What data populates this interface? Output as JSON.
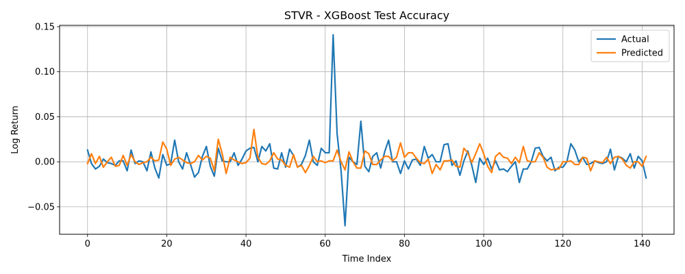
{
  "chart_data": {
    "type": "line",
    "title": "STVR - XGBoost Test Accuracy",
    "xlabel": "Time Index",
    "ylabel": "Log Return",
    "xlim": [
      -7.05,
      148.05
    ],
    "ylim": [
      -0.0805,
      0.1515
    ],
    "xticks": [
      0,
      20,
      40,
      60,
      80,
      100,
      120,
      140
    ],
    "xtick_labels": [
      "0",
      "20",
      "40",
      "60",
      "80",
      "100",
      "120",
      "140"
    ],
    "yticks": [
      -0.05,
      0.0,
      0.05,
      0.1,
      0.15
    ],
    "ytick_labels": [
      "−0.05",
      "0.00",
      "0.05",
      "0.10",
      "0.15"
    ],
    "grid": true,
    "legend_position": "upper right",
    "x": [
      0,
      1,
      2,
      3,
      4,
      5,
      6,
      7,
      8,
      9,
      10,
      11,
      12,
      13,
      14,
      15,
      16,
      17,
      18,
      19,
      20,
      21,
      22,
      23,
      24,
      25,
      26,
      27,
      28,
      29,
      30,
      31,
      32,
      33,
      34,
      35,
      36,
      37,
      38,
      39,
      40,
      41,
      42,
      43,
      44,
      45,
      46,
      47,
      48,
      49,
      50,
      51,
      52,
      53,
      54,
      55,
      56,
      57,
      58,
      59,
      60,
      61,
      62,
      63,
      64,
      65,
      66,
      67,
      68,
      69,
      70,
      71,
      72,
      73,
      74,
      75,
      76,
      77,
      78,
      79,
      80,
      81,
      82,
      83,
      84,
      85,
      86,
      87,
      88,
      89,
      90,
      91,
      92,
      93,
      94,
      95,
      96,
      97,
      98,
      99,
      100,
      101,
      102,
      103,
      104,
      105,
      106,
      107,
      108,
      109,
      110,
      111,
      112,
      113,
      114,
      115,
      116,
      117,
      118,
      119,
      120,
      121,
      122,
      123,
      124,
      125,
      126,
      127,
      128,
      129,
      130,
      131,
      132,
      133,
      134,
      135,
      136,
      137,
      138,
      139,
      140,
      141
    ],
    "series": [
      {
        "name": "Actual",
        "color": "#1f77b4",
        "values": [
          0.013,
          -0.002,
          -0.008,
          -0.005,
          0.003,
          -0.001,
          -0.002,
          -0.004,
          0.001,
          0.001,
          -0.01,
          0.013,
          -0.002,
          0.001,
          0.0,
          -0.01,
          0.011,
          -0.007,
          -0.018,
          0.008,
          -0.004,
          -0.002,
          0.024,
          0.0,
          -0.008,
          0.01,
          -0.003,
          -0.017,
          -0.012,
          0.006,
          0.017,
          -0.005,
          -0.016,
          0.015,
          0.001,
          0.0,
          0.0,
          0.01,
          -0.004,
          0.003,
          0.012,
          0.015,
          0.016,
          0.0,
          0.017,
          0.012,
          0.02,
          -0.007,
          -0.008,
          0.01,
          -0.006,
          0.014,
          0.007,
          -0.006,
          -0.003,
          0.007,
          0.024,
          0.0,
          -0.004,
          0.015,
          0.01,
          0.01,
          0.141,
          0.031,
          -0.01,
          -0.071,
          0.005,
          0.0,
          -0.003,
          0.045,
          -0.005,
          -0.011,
          0.006,
          0.01,
          -0.007,
          0.011,
          0.024,
          0.0,
          0.0,
          -0.013,
          0.001,
          -0.008,
          0.002,
          0.003,
          -0.004,
          0.017,
          0.004,
          0.008,
          0.0,
          0.0,
          0.019,
          0.02,
          -0.004,
          0.001,
          -0.015,
          0.001,
          0.012,
          -0.004,
          -0.023,
          0.004,
          -0.003,
          0.004,
          -0.008,
          0.001,
          -0.009,
          -0.008,
          -0.011,
          -0.005,
          0.0,
          -0.023,
          -0.008,
          -0.008,
          0.0,
          0.015,
          0.016,
          0.006,
          0.001,
          0.005,
          -0.01,
          -0.006,
          -0.006,
          0.0,
          0.02,
          0.013,
          0.0,
          0.005,
          -0.003,
          -0.002,
          0.001,
          -0.001,
          -0.002,
          0.0,
          0.014,
          -0.009,
          0.006,
          0.004,
          0.0,
          0.009,
          -0.007,
          0.006,
          0.001,
          -0.018
        ]
      },
      {
        "name": "Predicted",
        "color": "#ff7f0e",
        "values": [
          -0.002,
          0.009,
          -0.002,
          0.006,
          -0.006,
          0.0,
          0.005,
          -0.005,
          -0.004,
          0.007,
          -0.004,
          0.008,
          0.0,
          -0.003,
          -0.001,
          0.0,
          0.005,
          0.001,
          0.002,
          0.022,
          0.014,
          -0.004,
          0.003,
          0.005,
          0.002,
          -0.001,
          -0.002,
          0.0,
          0.007,
          0.002,
          0.006,
          0.004,
          -0.01,
          0.025,
          0.009,
          -0.013,
          0.005,
          0.002,
          0.0,
          -0.002,
          -0.001,
          0.004,
          0.036,
          0.005,
          -0.002,
          -0.003,
          0.001,
          0.01,
          0.003,
          0.002,
          -0.004,
          -0.006,
          0.008,
          -0.006,
          -0.004,
          -0.012,
          -0.004,
          0.006,
          0.0,
          0.001,
          -0.001,
          0.001,
          0.001,
          0.013,
          0.0,
          -0.009,
          0.011,
          0.0,
          -0.007,
          -0.007,
          0.012,
          0.009,
          -0.003,
          -0.003,
          0.002,
          0.006,
          0.006,
          0.001,
          0.005,
          0.021,
          0.005,
          0.01,
          0.01,
          0.004,
          -0.001,
          -0.002,
          0.003,
          -0.013,
          -0.003,
          -0.009,
          0.001,
          0.001,
          0.002,
          -0.005,
          -0.006,
          0.015,
          0.01,
          -0.001,
          0.009,
          0.02,
          0.009,
          -0.005,
          -0.012,
          0.006,
          0.01,
          0.005,
          0.004,
          -0.002,
          0.005,
          -0.001,
          0.017,
          0.001,
          0.0,
          0.0,
          0.01,
          0.005,
          -0.006,
          -0.009,
          -0.008,
          -0.008,
          0.0,
          0.0,
          0.001,
          -0.003,
          -0.003,
          0.005,
          0.004,
          -0.01,
          0.001,
          0.0,
          -0.001,
          0.005,
          -0.002,
          0.005,
          0.006,
          0.003,
          -0.004,
          -0.007,
          0.0,
          0.0,
          -0.005,
          0.006
        ]
      }
    ]
  }
}
